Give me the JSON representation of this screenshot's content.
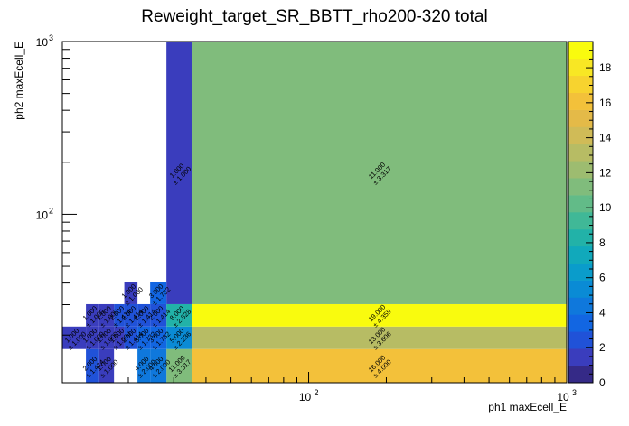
{
  "chart_data": {
    "type": "heatmap",
    "title": "Reweight_target_SR_BBTT_rho200-320 total",
    "xlabel": "ph1 maxEcell_E",
    "ylabel": "ph2 maxEcell_E",
    "xscale": "log",
    "yscale": "log",
    "xlim": [
      11.1,
      1000
    ],
    "ylim": [
      10.6,
      1000
    ],
    "x_ticks": [
      {
        "value": 100,
        "label": "10",
        "exp": "2"
      },
      {
        "value": 1000,
        "label": "10",
        "exp": "3"
      }
    ],
    "y_ticks": [
      {
        "value": 100,
        "label": "10",
        "exp": "2"
      },
      {
        "value": 1000,
        "label": "10",
        "exp": "3"
      }
    ],
    "colorbar": {
      "min": 0,
      "max": 19.5,
      "ticks": [
        0,
        2,
        4,
        6,
        8,
        10,
        12,
        14,
        16,
        18
      ],
      "palette": [
        "#352a87",
        "#3a3dbd",
        "#2052d8",
        "#1266e2",
        "#0f78dc",
        "#0a8bd5",
        "#0a9ccb",
        "#11a9bb",
        "#22b2a8",
        "#40b897",
        "#62bb88",
        "#80bc7c",
        "#9dbc70",
        "#b7bc64",
        "#d0bb57",
        "#e4ba48",
        "#f3c13a",
        "#f7d32f",
        "#f8e724",
        "#f9fb0e"
      ]
    },
    "bins": [
      {
        "x0": 35.2,
        "x1": 1000,
        "y0": 10.6,
        "y1": 16.6,
        "value": 16,
        "label": "16.000",
        "error": "± 4.000"
      },
      {
        "x0": 35.2,
        "x1": 1000,
        "y0": 16.6,
        "y1": 22.4,
        "value": 13,
        "label": "13.000",
        "error": "± 3.606"
      },
      {
        "x0": 35.2,
        "x1": 1000,
        "y0": 22.4,
        "y1": 30.2,
        "value": 19,
        "label": "19.000",
        "error": "± 4.359"
      },
      {
        "x0": 35.2,
        "x1": 1000,
        "y0": 30.2,
        "y1": 1000,
        "value": 11,
        "label": "11.000",
        "error": "± 3.317"
      },
      {
        "x0": 28.1,
        "x1": 35.2,
        "y0": 10.6,
        "y1": 16.6,
        "value": 11,
        "label": "11.000",
        "error": "± 3.317"
      },
      {
        "x0": 28.1,
        "x1": 35.2,
        "y0": 16.6,
        "y1": 22.4,
        "value": 5,
        "label": "5.000",
        "error": "± 2.236"
      },
      {
        "x0": 28.1,
        "x1": 35.2,
        "y0": 22.4,
        "y1": 30.2,
        "value": 8,
        "label": "8.000",
        "error": "± 2.828"
      },
      {
        "x0": 28.1,
        "x1": 35.2,
        "y0": 30.2,
        "y1": 1000,
        "value": 1,
        "label": "1.000",
        "error": "± 1.000"
      },
      {
        "x0": 24.3,
        "x1": 28.1,
        "y0": 10.6,
        "y1": 16.6,
        "value": 4,
        "label": "4.000",
        "error": "± 2.000"
      },
      {
        "x0": 24.3,
        "x1": 28.1,
        "y0": 16.6,
        "y1": 22.4,
        "value": 3,
        "label": "3.000",
        "error": "± 1.732"
      },
      {
        "x0": 24.3,
        "x1": 28.1,
        "y0": 22.4,
        "y1": 30.2,
        "value": 2,
        "label": "2.000",
        "error": "± 1.414"
      },
      {
        "x0": 24.3,
        "x1": 28.1,
        "y0": 30.2,
        "y1": 40.3,
        "value": 3,
        "label": "3.000",
        "error": "± 1.732"
      },
      {
        "x0": 21.7,
        "x1": 24.3,
        "y0": 10.6,
        "y1": 16.6,
        "value": 4,
        "label": "4.000",
        "error": "± 2.000"
      },
      {
        "x0": 21.7,
        "x1": 24.3,
        "y0": 16.6,
        "y1": 22.4,
        "value": 3,
        "label": "3.000",
        "error": "± 1.732"
      },
      {
        "x0": 21.7,
        "x1": 24.3,
        "y0": 22.4,
        "y1": 30.2,
        "value": 2,
        "label": "2.000",
        "error": "± 1.414"
      },
      {
        "x0": 19.3,
        "x1": 21.7,
        "y0": 16.6,
        "y1": 22.4,
        "value": 2,
        "label": "2.000",
        "error": "± 1.414"
      },
      {
        "x0": 19.3,
        "x1": 21.7,
        "y0": 22.4,
        "y1": 30.2,
        "value": 2,
        "label": "2.000",
        "error": "± 1.414"
      },
      {
        "x0": 19.3,
        "x1": 21.7,
        "y0": 30.2,
        "y1": 40.3,
        "value": 1,
        "label": "1.000",
        "error": "± 1.000"
      },
      {
        "x0": 17.6,
        "x1": 19.3,
        "y0": 16.6,
        "y1": 22.4,
        "value": 1,
        "label": "1.000",
        "error": "± 1.000"
      },
      {
        "x0": 17.6,
        "x1": 19.3,
        "y0": 22.4,
        "y1": 30.2,
        "value": 2,
        "label": "2.000",
        "error": "± 1.414"
      },
      {
        "x0": 15.3,
        "x1": 17.6,
        "y0": 10.6,
        "y1": 16.6,
        "value": 1,
        "label": "1.000",
        "error": "± 1.000"
      },
      {
        "x0": 15.3,
        "x1": 17.6,
        "y0": 16.6,
        "y1": 22.4,
        "value": 1,
        "label": "1.000",
        "error": "± 1.000"
      },
      {
        "x0": 15.3,
        "x1": 17.6,
        "y0": 22.4,
        "y1": 30.2,
        "value": 1,
        "label": "1.000",
        "error": "± 1.000"
      },
      {
        "x0": 13.7,
        "x1": 15.3,
        "y0": 10.6,
        "y1": 16.6,
        "value": 2,
        "label": "2.000",
        "error": "± 1.414"
      },
      {
        "x0": 13.7,
        "x1": 15.3,
        "y0": 16.6,
        "y1": 22.4,
        "value": 1,
        "label": "1.000",
        "error": "± 1.000"
      },
      {
        "x0": 13.7,
        "x1": 15.3,
        "y0": 22.4,
        "y1": 30.2,
        "value": 1,
        "label": "1.000",
        "error": "± 1.000"
      },
      {
        "x0": 11.1,
        "x1": 13.7,
        "y0": 16.6,
        "y1": 22.4,
        "value": 1,
        "label": "1.000",
        "error": "± 1.000"
      }
    ]
  }
}
